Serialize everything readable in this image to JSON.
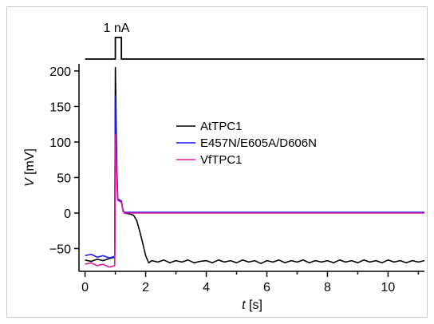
{
  "chart_data": {
    "type": "line",
    "stimulus_label": "1 nA",
    "x_axis": {
      "label_var": "t",
      "label_unit": " [s]",
      "range": [
        -0.2,
        11.2
      ],
      "ticks": [
        0,
        2,
        4,
        6,
        8,
        10
      ]
    },
    "y_axis": {
      "label_var": "V",
      "label_unit": " [mV]",
      "range": [
        -82,
        210
      ],
      "ticks": [
        -50,
        0,
        50,
        100,
        150,
        200
      ]
    },
    "legend_placement": "center",
    "grid": false,
    "series": [
      {
        "name": "AtTPC1",
        "color": "#000000",
        "points": [
          [
            0,
            -66
          ],
          [
            0.2,
            -68
          ],
          [
            0.4,
            -65
          ],
          [
            0.6,
            -67
          ],
          [
            0.8,
            -64
          ],
          [
            0.98,
            -62
          ],
          [
            1.0,
            205
          ],
          [
            1.05,
            60
          ],
          [
            1.08,
            20
          ],
          [
            1.2,
            16
          ],
          [
            1.25,
            3
          ],
          [
            1.3,
            0
          ],
          [
            1.45,
            -1
          ],
          [
            1.6,
            -3
          ],
          [
            1.7,
            -10
          ],
          [
            1.8,
            -25
          ],
          [
            1.9,
            -42
          ],
          [
            2.0,
            -60
          ],
          [
            2.1,
            -70
          ],
          [
            2.2,
            -67
          ],
          [
            2.4,
            -69
          ],
          [
            2.6,
            -66
          ],
          [
            2.8,
            -70
          ],
          [
            3.0,
            -67
          ],
          [
            3.2,
            -69
          ],
          [
            3.4,
            -66
          ],
          [
            3.6,
            -70
          ],
          [
            3.8,
            -68
          ],
          [
            4.0,
            -67
          ],
          [
            4.2,
            -70
          ],
          [
            4.4,
            -66
          ],
          [
            4.6,
            -69
          ],
          [
            4.8,
            -67
          ],
          [
            5.0,
            -70
          ],
          [
            5.2,
            -66
          ],
          [
            5.4,
            -69
          ],
          [
            5.6,
            -67
          ],
          [
            5.8,
            -71
          ],
          [
            6.0,
            -67
          ],
          [
            6.2,
            -69
          ],
          [
            6.4,
            -66
          ],
          [
            6.6,
            -70
          ],
          [
            6.8,
            -67
          ],
          [
            7.0,
            -69
          ],
          [
            7.2,
            -66
          ],
          [
            7.4,
            -70
          ],
          [
            7.6,
            -67
          ],
          [
            7.8,
            -69
          ],
          [
            8.0,
            -67
          ],
          [
            8.2,
            -70
          ],
          [
            8.4,
            -66
          ],
          [
            8.6,
            -69
          ],
          [
            8.8,
            -67
          ],
          [
            9.0,
            -70
          ],
          [
            9.2,
            -66
          ],
          [
            9.4,
            -69
          ],
          [
            9.6,
            -67
          ],
          [
            9.8,
            -70
          ],
          [
            10.0,
            -66
          ],
          [
            10.2,
            -69
          ],
          [
            10.4,
            -67
          ],
          [
            10.6,
            -70
          ],
          [
            10.8,
            -67
          ],
          [
            11.0,
            -69
          ],
          [
            11.2,
            -67
          ]
        ]
      },
      {
        "name": "E457N/E605A/D606N",
        "color": "#1a1aff",
        "points": [
          [
            0,
            -60
          ],
          [
            0.2,
            -58
          ],
          [
            0.4,
            -62
          ],
          [
            0.6,
            -60
          ],
          [
            0.8,
            -63
          ],
          [
            0.98,
            -61
          ],
          [
            1.0,
            165
          ],
          [
            1.05,
            50
          ],
          [
            1.08,
            20
          ],
          [
            1.2,
            17
          ],
          [
            1.25,
            4
          ],
          [
            1.3,
            1
          ],
          [
            2.0,
            1
          ],
          [
            4.0,
            1
          ],
          [
            6.0,
            1
          ],
          [
            8.0,
            1
          ],
          [
            10.0,
            1
          ],
          [
            11.2,
            1
          ]
        ]
      },
      {
        "name": "VfTPC1",
        "color": "#e0189a",
        "points": [
          [
            0,
            -72
          ],
          [
            0.2,
            -70
          ],
          [
            0.4,
            -74
          ],
          [
            0.6,
            -72
          ],
          [
            0.8,
            -76
          ],
          [
            0.98,
            -74
          ],
          [
            1.0,
            110
          ],
          [
            1.05,
            40
          ],
          [
            1.08,
            18
          ],
          [
            1.2,
            15
          ],
          [
            1.25,
            3
          ],
          [
            1.3,
            0
          ],
          [
            2.0,
            0
          ],
          [
            4.0,
            0
          ],
          [
            6.0,
            0
          ],
          [
            8.0,
            0
          ],
          [
            10.0,
            0
          ],
          [
            11.2,
            0
          ]
        ]
      }
    ],
    "stimulus": {
      "base_level": 0,
      "pulse_level": 1,
      "pulse_start": 1.0,
      "pulse_end": 1.2
    }
  }
}
